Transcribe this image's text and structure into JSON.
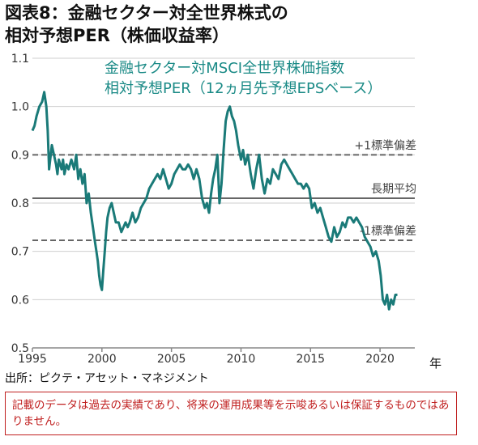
{
  "figure_title_line1": "図表8：金融セクター対全世界株式の",
  "figure_title_line2": "相対予想PER（株価収益率）",
  "source": "出所：ピクテ・アセット・マネジメント",
  "disclaimer": "記載のデータは過去の実績であり、将来の運用成果等を示唆あるいは保証するものではありません。",
  "colors": {
    "series": "#1a7a78",
    "reference": "#666666",
    "subtitle": "#1a8a86",
    "disclaimer": "#c02020"
  },
  "chart_data": {
    "type": "line",
    "title": "金融セクター対MSCI全世界株価指数",
    "subtitle": "相対予想PER（12ヵ月先予想EPSベース）",
    "xlabel": "年",
    "ylabel": "",
    "xlim": [
      1995,
      2022.5
    ],
    "ylim": [
      0.5,
      1.1
    ],
    "x_ticks": [
      "1995",
      "2000",
      "2005",
      "2010",
      "2015",
      "2020"
    ],
    "y_ticks": [
      "0.5",
      "0.6",
      "0.7",
      "0.8",
      "0.9",
      "1.0",
      "1.1"
    ],
    "grid": "horizontal",
    "reference_lines": [
      {
        "label": "+1標準偏差",
        "value": 0.9,
        "style": "dashed"
      },
      {
        "label": "長期平均",
        "value": 0.81,
        "style": "solid"
      },
      {
        "label": "-1標準偏差",
        "value": 0.723,
        "style": "dashed"
      }
    ],
    "series": [
      {
        "x": [
          1995.0,
          1995.15,
          1995.3,
          1995.5,
          1995.7,
          1995.85,
          1996.0,
          1996.1,
          1996.2,
          1996.4,
          1996.55,
          1996.7,
          1996.8,
          1996.9,
          1997.0,
          1997.1,
          1997.2,
          1997.3,
          1997.45,
          1997.6,
          1997.8,
          1998.0,
          1998.15,
          1998.3,
          1998.45,
          1998.6,
          1998.75,
          1998.9,
          1999.05,
          1999.2,
          1999.35,
          1999.5,
          1999.6,
          1999.7,
          1999.8,
          1999.9,
          2000.0,
          2000.1,
          2000.2,
          2000.3,
          2000.4,
          2000.55,
          2000.7,
          2000.85,
          2001.0,
          2001.2,
          2001.4,
          2001.55,
          2001.7,
          2001.85,
          2002.0,
          2002.2,
          2002.4,
          2002.6,
          2002.8,
          2003.0,
          2003.2,
          2003.4,
          2003.6,
          2003.8,
          2004.0,
          2004.2,
          2004.4,
          2004.6,
          2004.8,
          2005.0,
          2005.2,
          2005.4,
          2005.6,
          2005.8,
          2006.0,
          2006.2,
          2006.4,
          2006.6,
          2006.8,
          2007.0,
          2007.2,
          2007.4,
          2007.55,
          2007.7,
          2007.85,
          2008.0,
          2008.15,
          2008.3,
          2008.45,
          2008.6,
          2008.75,
          2008.9,
          2009.05,
          2009.2,
          2009.35,
          2009.5,
          2009.65,
          2009.8,
          2010.0,
          2010.15,
          2010.3,
          2010.5,
          2010.7,
          2010.9,
          2011.1,
          2011.3,
          2011.5,
          2011.7,
          2011.9,
          2012.1,
          2012.3,
          2012.5,
          2012.7,
          2012.9,
          2013.1,
          2013.3,
          2013.5,
          2013.7,
          2013.9,
          2014.1,
          2014.3,
          2014.5,
          2014.7,
          2014.9,
          2015.1,
          2015.3,
          2015.5,
          2015.7,
          2015.9,
          2016.1,
          2016.3,
          2016.5,
          2016.7,
          2016.9,
          2017.1,
          2017.3,
          2017.5,
          2017.7,
          2017.9,
          2018.1,
          2018.3,
          2018.5,
          2018.7,
          2018.9,
          2019.1,
          2019.3,
          2019.5,
          2019.7,
          2019.9,
          2020.05,
          2020.2,
          2020.35,
          2020.5,
          2020.65,
          2020.8,
          2020.95,
          2021.1,
          2021.25
        ],
        "values": [
          0.95,
          0.96,
          0.98,
          1.0,
          1.01,
          1.03,
          1.0,
          0.95,
          0.87,
          0.92,
          0.9,
          0.88,
          0.86,
          0.89,
          0.88,
          0.87,
          0.89,
          0.86,
          0.88,
          0.87,
          0.89,
          0.87,
          0.9,
          0.85,
          0.87,
          0.84,
          0.86,
          0.8,
          0.82,
          0.78,
          0.75,
          0.72,
          0.7,
          0.68,
          0.65,
          0.63,
          0.62,
          0.66,
          0.7,
          0.74,
          0.77,
          0.79,
          0.8,
          0.78,
          0.76,
          0.76,
          0.74,
          0.75,
          0.76,
          0.75,
          0.76,
          0.78,
          0.76,
          0.77,
          0.79,
          0.8,
          0.81,
          0.83,
          0.84,
          0.85,
          0.86,
          0.85,
          0.87,
          0.85,
          0.83,
          0.84,
          0.86,
          0.87,
          0.88,
          0.87,
          0.87,
          0.88,
          0.87,
          0.85,
          0.87,
          0.85,
          0.81,
          0.79,
          0.8,
          0.78,
          0.82,
          0.85,
          0.87,
          0.9,
          0.8,
          0.84,
          0.91,
          0.97,
          0.99,
          1.0,
          0.98,
          0.97,
          0.95,
          0.92,
          0.89,
          0.91,
          0.88,
          0.9,
          0.86,
          0.83,
          0.87,
          0.9,
          0.85,
          0.82,
          0.85,
          0.84,
          0.87,
          0.86,
          0.85,
          0.88,
          0.89,
          0.88,
          0.87,
          0.86,
          0.85,
          0.84,
          0.84,
          0.83,
          0.84,
          0.83,
          0.79,
          0.8,
          0.78,
          0.79,
          0.77,
          0.75,
          0.73,
          0.72,
          0.75,
          0.73,
          0.74,
          0.76,
          0.75,
          0.77,
          0.77,
          0.76,
          0.77,
          0.76,
          0.75,
          0.73,
          0.72,
          0.71,
          0.69,
          0.7,
          0.68,
          0.65,
          0.6,
          0.59,
          0.61,
          0.58,
          0.6,
          0.59,
          0.61,
          0.61
        ]
      }
    ]
  }
}
